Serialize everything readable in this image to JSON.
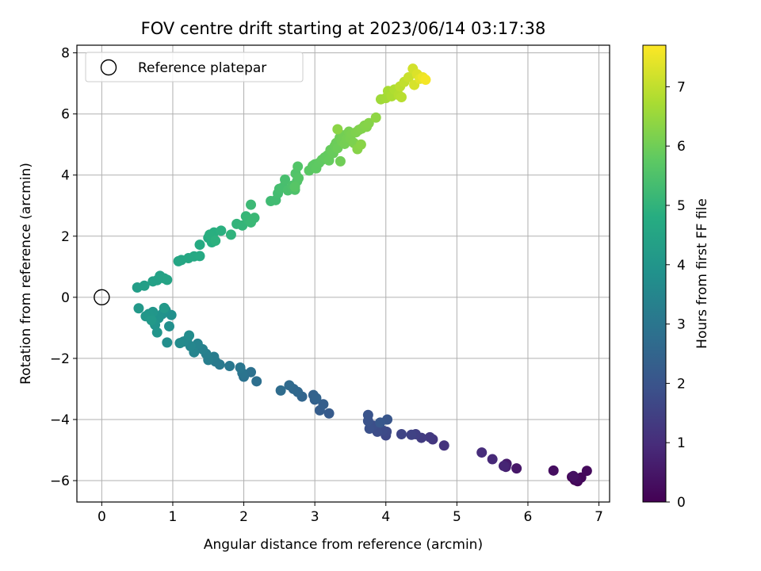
{
  "chart_data": {
    "type": "scatter",
    "title": "FOV centre drift starting at 2023/06/14 03:17:38",
    "xlabel": "Angular distance from reference (arcmin)",
    "ylabel": "Rotation from reference (arcmin)",
    "xlim": [
      -0.35,
      7.15
    ],
    "ylim": [
      -6.7,
      8.25
    ],
    "xticks": [
      0,
      1,
      2,
      3,
      4,
      5,
      6,
      7
    ],
    "yticks": [
      -6,
      -4,
      -2,
      0,
      2,
      4,
      6,
      8
    ],
    "grid": true,
    "legend": {
      "location": "upper-left",
      "entries": [
        {
          "label": "Reference platepar",
          "marker": "open-circle"
        }
      ]
    },
    "reference_point": {
      "x": 0,
      "y": 0
    },
    "colorbar": {
      "label": "Hours from first FF file",
      "colormap": "viridis",
      "range": [
        0,
        7.7
      ],
      "ticks": [
        0,
        1,
        2,
        3,
        4,
        5,
        6,
        7
      ]
    },
    "series": [
      {
        "points": [
          [
            6.66,
            -5.98,
            0.0
          ],
          [
            6.62,
            -5.88,
            0.05
          ],
          [
            6.7,
            -6.02,
            0.1
          ],
          [
            6.75,
            -5.9,
            0.15
          ],
          [
            6.83,
            -5.68,
            0.2
          ],
          [
            6.68,
            -5.95,
            0.25
          ],
          [
            6.36,
            -5.67,
            0.3
          ],
          [
            6.64,
            -5.85,
            0.35
          ],
          [
            5.84,
            -5.6,
            0.5
          ],
          [
            5.7,
            -5.45,
            0.6
          ],
          [
            5.69,
            -5.55,
            0.7
          ],
          [
            5.66,
            -5.52,
            0.8
          ],
          [
            5.5,
            -5.3,
            0.9
          ],
          [
            5.35,
            -5.08,
            1.0
          ],
          [
            4.82,
            -4.85,
            1.15
          ],
          [
            4.66,
            -4.65,
            1.22
          ],
          [
            4.62,
            -4.58,
            1.3
          ],
          [
            4.5,
            -4.6,
            1.38
          ],
          [
            4.42,
            -4.48,
            1.45
          ],
          [
            4.36,
            -4.5,
            1.52
          ],
          [
            4.22,
            -4.48,
            1.58
          ],
          [
            4.0,
            -4.52,
            1.65
          ],
          [
            4.01,
            -4.4,
            1.7
          ],
          [
            3.95,
            -4.35,
            1.75
          ],
          [
            3.88,
            -4.4,
            1.8
          ],
          [
            3.82,
            -4.2,
            1.85
          ],
          [
            3.77,
            -4.3,
            1.9
          ],
          [
            3.75,
            -4.05,
            1.95
          ],
          [
            3.75,
            -3.85,
            2.0
          ],
          [
            4.02,
            -4.0,
            2.05
          ],
          [
            3.92,
            -4.1,
            2.1
          ],
          [
            3.2,
            -3.8,
            2.2
          ],
          [
            3.07,
            -3.7,
            2.25
          ],
          [
            3.12,
            -3.5,
            2.3
          ],
          [
            3.0,
            -3.35,
            2.35
          ],
          [
            2.98,
            -3.2,
            2.4
          ],
          [
            3.02,
            -3.3,
            2.45
          ],
          [
            2.82,
            -3.25,
            2.5
          ],
          [
            2.76,
            -3.1,
            2.55
          ],
          [
            2.7,
            -3.0,
            2.6
          ],
          [
            2.64,
            -2.88,
            2.65
          ],
          [
            2.52,
            -3.05,
            2.7
          ],
          [
            2.18,
            -2.75,
            2.8
          ],
          [
            2.1,
            -2.45,
            2.85
          ],
          [
            2.0,
            -2.6,
            2.9
          ],
          [
            1.98,
            -2.48,
            2.95
          ],
          [
            1.95,
            -2.3,
            3.0
          ],
          [
            1.8,
            -2.25,
            3.05
          ],
          [
            1.66,
            -2.2,
            3.1
          ],
          [
            1.6,
            -2.1,
            3.15
          ],
          [
            1.58,
            -1.95,
            3.2
          ],
          [
            1.5,
            -2.05,
            3.25
          ],
          [
            1.47,
            -1.85,
            3.3
          ],
          [
            1.42,
            -1.7,
            3.35
          ],
          [
            1.35,
            -1.52,
            3.4
          ],
          [
            1.3,
            -1.8,
            3.45
          ],
          [
            1.25,
            -1.6,
            3.5
          ],
          [
            1.2,
            -1.4,
            3.55
          ],
          [
            1.15,
            -1.45,
            3.6
          ],
          [
            1.1,
            -1.5,
            3.65
          ],
          [
            1.23,
            -1.25,
            3.7
          ],
          [
            0.92,
            -1.48,
            3.75
          ],
          [
            0.95,
            -0.95,
            3.8
          ],
          [
            0.98,
            -0.58,
            3.83
          ],
          [
            0.9,
            -0.42,
            3.86
          ],
          [
            0.85,
            -0.55,
            3.89
          ],
          [
            0.8,
            -0.68,
            3.92
          ],
          [
            0.75,
            -0.9,
            3.95
          ],
          [
            0.78,
            -1.15,
            3.98
          ],
          [
            0.72,
            -0.48,
            4.01
          ],
          [
            0.66,
            -0.55,
            4.04
          ],
          [
            0.62,
            -0.62,
            4.07
          ],
          [
            0.52,
            -0.36,
            4.1
          ],
          [
            0.88,
            -0.35,
            4.12
          ],
          [
            0.7,
            -0.75,
            4.14
          ],
          [
            0.5,
            0.32,
            4.25
          ],
          [
            0.6,
            0.38,
            4.3
          ],
          [
            0.72,
            0.52,
            4.35
          ],
          [
            0.78,
            0.56,
            4.38
          ],
          [
            0.82,
            0.7,
            4.41
          ],
          [
            0.88,
            0.62,
            4.44
          ],
          [
            0.92,
            0.57,
            4.47
          ],
          [
            1.08,
            1.18,
            4.55
          ],
          [
            1.12,
            1.22,
            4.58
          ],
          [
            1.22,
            1.28,
            4.61
          ],
          [
            1.3,
            1.34,
            4.64
          ],
          [
            1.38,
            1.35,
            4.67
          ],
          [
            1.38,
            1.72,
            4.72
          ],
          [
            1.5,
            1.95,
            4.76
          ],
          [
            1.55,
            1.8,
            4.8
          ],
          [
            1.58,
            2.12,
            4.83
          ],
          [
            1.52,
            2.05,
            4.86
          ],
          [
            1.68,
            2.18,
            4.89
          ],
          [
            1.6,
            1.85,
            4.92
          ],
          [
            1.82,
            2.05,
            4.98
          ],
          [
            1.9,
            2.4,
            5.02
          ],
          [
            1.98,
            2.35,
            5.05
          ],
          [
            2.03,
            2.65,
            5.08
          ],
          [
            2.06,
            2.55,
            5.11
          ],
          [
            2.1,
            2.45,
            5.14
          ],
          [
            2.15,
            2.6,
            5.17
          ],
          [
            2.1,
            3.03,
            5.2
          ],
          [
            2.38,
            3.15,
            5.26
          ],
          [
            2.45,
            3.18,
            5.29
          ],
          [
            2.48,
            3.4,
            5.32
          ],
          [
            2.5,
            3.55,
            5.35
          ],
          [
            2.55,
            3.6,
            5.38
          ],
          [
            2.58,
            3.85,
            5.41
          ],
          [
            2.62,
            3.5,
            5.44
          ],
          [
            2.68,
            3.65,
            5.47
          ],
          [
            2.72,
            3.52,
            5.5
          ],
          [
            2.75,
            3.8,
            5.53
          ],
          [
            2.73,
            4.05,
            5.56
          ],
          [
            2.76,
            4.28,
            5.59
          ],
          [
            2.77,
            3.9,
            5.62
          ],
          [
            2.72,
            3.62,
            5.65
          ],
          [
            2.92,
            4.15,
            5.7
          ],
          [
            2.97,
            4.3,
            5.72
          ],
          [
            3.0,
            4.35,
            5.74
          ],
          [
            3.02,
            4.22,
            5.76
          ],
          [
            3.06,
            4.4,
            5.78
          ],
          [
            3.1,
            4.5,
            5.8
          ],
          [
            3.14,
            4.58,
            5.82
          ],
          [
            3.18,
            4.65,
            5.84
          ],
          [
            3.2,
            4.48,
            5.86
          ],
          [
            3.22,
            4.82,
            5.88
          ],
          [
            3.26,
            4.72,
            5.9
          ],
          [
            3.28,
            4.95,
            5.92
          ],
          [
            3.3,
            5.05,
            5.94
          ],
          [
            3.32,
            4.88,
            5.96
          ],
          [
            3.35,
            5.22,
            5.98
          ],
          [
            3.36,
            4.45,
            6.0
          ],
          [
            3.38,
            5.1,
            6.02
          ],
          [
            3.4,
            5.3,
            6.04
          ],
          [
            3.42,
            5.02,
            6.06
          ],
          [
            3.45,
            5.18,
            6.08
          ],
          [
            3.48,
            5.42,
            6.1
          ],
          [
            3.5,
            5.2,
            6.12
          ],
          [
            3.52,
            5.35,
            6.14
          ],
          [
            3.55,
            5.05,
            6.16
          ],
          [
            3.58,
            5.4,
            6.18
          ],
          [
            3.62,
            5.48,
            6.2
          ],
          [
            3.66,
            5.52,
            6.22
          ],
          [
            3.7,
            5.62,
            6.24
          ],
          [
            3.73,
            5.58,
            6.26
          ],
          [
            3.76,
            5.7,
            6.28
          ],
          [
            3.6,
            4.85,
            6.3
          ],
          [
            3.65,
            5.0,
            6.32
          ],
          [
            3.32,
            5.5,
            6.34
          ],
          [
            3.86,
            5.88,
            6.4
          ],
          [
            3.93,
            6.48,
            6.6
          ],
          [
            4.0,
            6.52,
            6.65
          ],
          [
            4.03,
            6.75,
            6.7
          ],
          [
            4.08,
            6.58,
            6.75
          ],
          [
            4.12,
            6.8,
            6.8
          ],
          [
            4.18,
            6.62,
            6.85
          ],
          [
            4.22,
            6.55,
            6.9
          ],
          [
            4.2,
            6.9,
            6.95
          ],
          [
            4.26,
            7.05,
            7.0
          ],
          [
            4.32,
            7.2,
            7.1
          ],
          [
            4.38,
            7.48,
            7.2
          ],
          [
            4.4,
            6.95,
            7.25
          ],
          [
            4.44,
            7.3,
            7.3
          ],
          [
            4.48,
            7.15,
            7.4
          ],
          [
            4.52,
            7.2,
            7.5
          ],
          [
            4.56,
            7.12,
            7.6
          ]
        ]
      }
    ]
  }
}
